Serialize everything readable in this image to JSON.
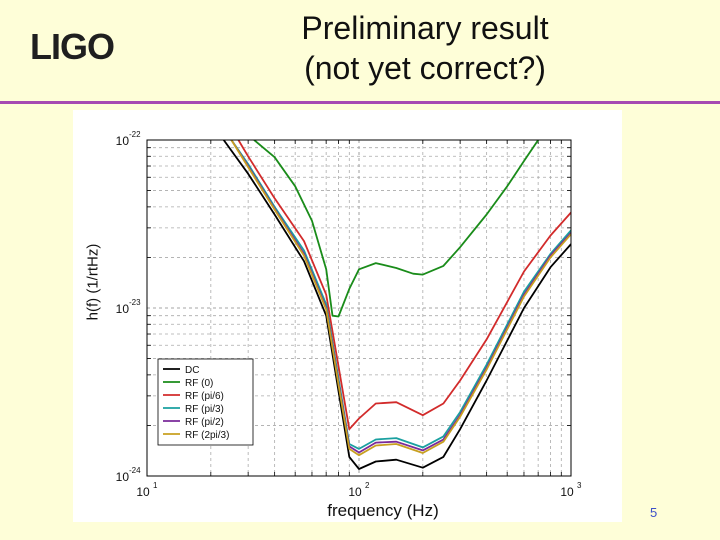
{
  "slide": {
    "logo": "LIGO",
    "title_line1": "Preliminary result",
    "title_line2": "(not yet correct?)",
    "page_number": "5",
    "rule_color": "#a64ab2"
  },
  "chart_data": {
    "type": "line",
    "title": "",
    "xlabel": "frequency (Hz)",
    "ylabel": "h(f) (1/rtHz)",
    "xscale": "log",
    "yscale": "log",
    "xlim": [
      10,
      1000
    ],
    "ylim": [
      1e-24,
      1e-22
    ],
    "xticks": [
      {
        "base": "10",
        "exp": "1"
      },
      {
        "base": "10",
        "exp": "2"
      },
      {
        "base": "10",
        "exp": "3"
      }
    ],
    "yticks": [
      {
        "base": "10",
        "exp": "-24"
      },
      {
        "base": "10",
        "exp": "-23"
      },
      {
        "base": "10",
        "exp": "-22"
      }
    ],
    "grid": true,
    "legend_position": "lower-left",
    "series": [
      {
        "name": "DC",
        "color": "#000000",
        "x": [
          23,
          30,
          40,
          55,
          70,
          80,
          90,
          100,
          120,
          150,
          200,
          250,
          300,
          400,
          600,
          800,
          1000
        ],
        "y": [
          1e-22,
          6.3e-23,
          3.6e-23,
          1.9e-23,
          9e-24,
          3.2e-24,
          1.3e-24,
          1.1e-24,
          1.22e-24,
          1.25e-24,
          1.12e-24,
          1.3e-24,
          1.9e-24,
          3.7e-24,
          1e-23,
          1.75e-23,
          2.4e-23
        ]
      },
      {
        "name": "RF (0)",
        "color": "#1a8c1a",
        "x": [
          32,
          40,
          50,
          60,
          70,
          75,
          80,
          90,
          100,
          120,
          150,
          180,
          200,
          250,
          300,
          400,
          500,
          600,
          700
        ],
        "y": [
          1e-22,
          7.9e-23,
          5.3e-23,
          3.3e-23,
          1.7e-23,
          9e-24,
          8.9e-24,
          1.3e-23,
          1.7e-23,
          1.85e-23,
          1.73e-23,
          1.6e-23,
          1.58e-23,
          1.78e-23,
          2.3e-23,
          3.6e-23,
          5.3e-23,
          7.5e-23,
          1e-22
        ]
      },
      {
        "name": "RF (pi/6)",
        "color": "#d22b2b",
        "x": [
          27,
          30,
          40,
          55,
          70,
          80,
          90,
          100,
          120,
          150,
          200,
          250,
          300,
          400,
          600,
          800,
          1000
        ],
        "y": [
          1e-22,
          8e-23,
          4.5e-23,
          2.5e-23,
          1.2e-23,
          4.5e-24,
          1.9e-24,
          2.2e-24,
          2.7e-24,
          2.75e-24,
          2.3e-24,
          2.7e-24,
          3.7e-24,
          6.5e-24,
          1.65e-23,
          2.7e-23,
          3.7e-23
        ]
      },
      {
        "name": "RF (pi/3)",
        "color": "#1aa0a0",
        "x": [
          25,
          30,
          40,
          55,
          70,
          80,
          90,
          100,
          120,
          150,
          200,
          250,
          300,
          400,
          600,
          800,
          1000
        ],
        "y": [
          1e-22,
          7.2e-23,
          4e-23,
          2.2e-23,
          1.05e-23,
          3.8e-24,
          1.55e-24,
          1.45e-24,
          1.65e-24,
          1.68e-24,
          1.48e-24,
          1.72e-24,
          2.4e-24,
          4.6e-24,
          1.25e-23,
          2.1e-23,
          2.9e-23
        ]
      },
      {
        "name": "RF (pi/2)",
        "color": "#7a2a9a",
        "x": [
          25,
          30,
          40,
          55,
          70,
          80,
          90,
          100,
          120,
          150,
          200,
          250,
          300,
          400,
          600,
          800,
          1000
        ],
        "y": [
          1e-22,
          7e-23,
          3.9e-23,
          2.1e-23,
          1e-23,
          3.6e-24,
          1.5e-24,
          1.38e-24,
          1.58e-24,
          1.6e-24,
          1.42e-24,
          1.65e-24,
          2.3e-24,
          4.4e-24,
          1.2e-23,
          2.05e-23,
          2.8e-23
        ]
      },
      {
        "name": "RF (2pi/3)",
        "color": "#c8a020",
        "x": [
          25,
          30,
          40,
          55,
          70,
          80,
          90,
          100,
          120,
          150,
          200,
          250,
          300,
          400,
          600,
          800,
          1000
        ],
        "y": [
          1e-22,
          6.9e-23,
          3.85e-23,
          2.05e-23,
          9.8e-24,
          3.5e-24,
          1.45e-24,
          1.33e-24,
          1.52e-24,
          1.55e-24,
          1.37e-24,
          1.6e-24,
          2.25e-24,
          4.3e-24,
          1.17e-23,
          2e-23,
          2.75e-23
        ]
      }
    ]
  }
}
